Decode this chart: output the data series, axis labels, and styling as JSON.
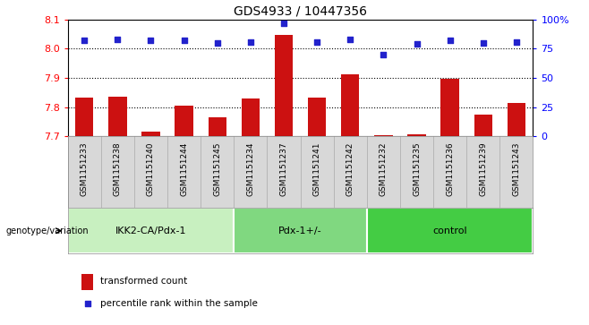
{
  "title": "GDS4933 / 10447356",
  "samples": [
    "GSM1151233",
    "GSM1151238",
    "GSM1151240",
    "GSM1151244",
    "GSM1151245",
    "GSM1151234",
    "GSM1151237",
    "GSM1151241",
    "GSM1151242",
    "GSM1151232",
    "GSM1151235",
    "GSM1151236",
    "GSM1151239",
    "GSM1151243"
  ],
  "bar_values": [
    7.832,
    7.835,
    7.718,
    7.805,
    7.765,
    7.83,
    8.047,
    7.832,
    7.912,
    7.703,
    7.706,
    7.898,
    7.776,
    7.814
  ],
  "dot_values": [
    82,
    83,
    82,
    82,
    80,
    81,
    97,
    81,
    83,
    70,
    79,
    82,
    80,
    81
  ],
  "groups": [
    {
      "label": "IKK2-CA/Pdx-1",
      "start": 0,
      "end": 5,
      "color": "#c8f0c0"
    },
    {
      "label": "Pdx-1+/-",
      "start": 5,
      "end": 9,
      "color": "#80d880"
    },
    {
      "label": "control",
      "start": 9,
      "end": 14,
      "color": "#44cc44"
    }
  ],
  "ylim_left": [
    7.7,
    8.1
  ],
  "ylim_right": [
    0,
    100
  ],
  "yticks_left": [
    7.7,
    7.8,
    7.9,
    8.0,
    8.1
  ],
  "yticks_right": [
    0,
    25,
    50,
    75,
    100
  ],
  "grid_values": [
    7.8,
    7.9,
    8.0
  ],
  "bar_color": "#cc1111",
  "dot_color": "#2222cc",
  "bar_width": 0.55,
  "label_bg_color": "#d8d8d8",
  "genotype_label": "genotype/variation",
  "legend_bar": "transformed count",
  "legend_dot": "percentile rank within the sample"
}
